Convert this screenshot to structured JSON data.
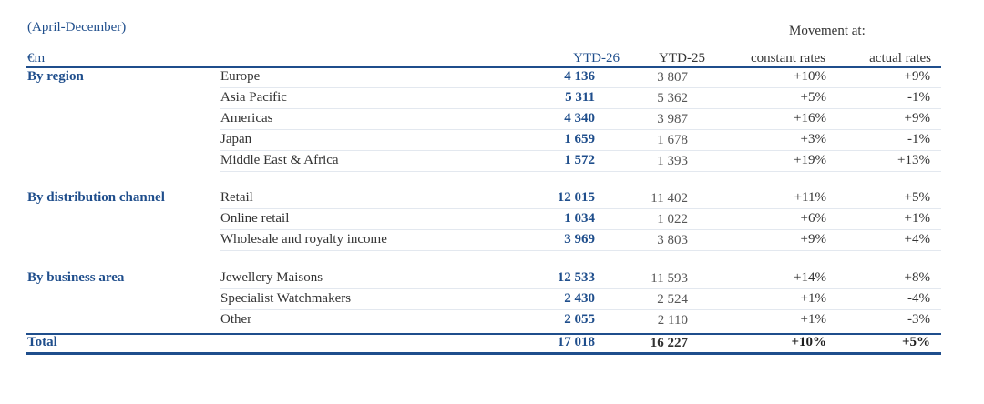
{
  "period": "(April-December)",
  "movement_heading": "Movement at:",
  "headers": {
    "unit": "€m",
    "ytd26": "YTD-26",
    "ytd25": "YTD-25",
    "constant": "constant rates",
    "actual": "actual rates"
  },
  "sections": {
    "region": "By region",
    "channel": "By distribution channel",
    "business": "By business area",
    "total": "Total"
  },
  "rows": [
    {
      "label": "Europe",
      "ytd26": "4 136",
      "ytd25": "3 807",
      "constant": "+10%",
      "actual": "+9%"
    },
    {
      "label": "Asia Pacific",
      "ytd26": "5 311",
      "ytd25": "5 362",
      "constant": "+5%",
      "actual": "-1%"
    },
    {
      "label": "Americas",
      "ytd26": "4 340",
      "ytd25": "3 987",
      "constant": "+16%",
      "actual": "+9%"
    },
    {
      "label": "Japan",
      "ytd26": "1 659",
      "ytd25": "1 678",
      "constant": "+3%",
      "actual": "-1%"
    },
    {
      "label": "Middle East & Africa",
      "ytd26": "1 572",
      "ytd25": "1 393",
      "constant": "+19%",
      "actual": "+13%"
    },
    {
      "label": "Retail",
      "ytd26": "12 015",
      "ytd25": "11 402",
      "constant": "+11%",
      "actual": "+5%"
    },
    {
      "label": "Online retail",
      "ytd26": "1 034",
      "ytd25": "1 022",
      "constant": "+6%",
      "actual": "+1%"
    },
    {
      "label": "Wholesale and royalty income",
      "ytd26": "3 969",
      "ytd25": "3 803",
      "constant": "+9%",
      "actual": "+4%"
    },
    {
      "label": "Jewellery Maisons",
      "ytd26": "12 533",
      "ytd25": "11 593",
      "constant": "+14%",
      "actual": "+8%"
    },
    {
      "label": "Specialist Watchmakers",
      "ytd26": "2 430",
      "ytd25": "2 524",
      "constant": "+1%",
      "actual": "-4%"
    },
    {
      "label": "Other",
      "ytd26": "2 055",
      "ytd25": "2 110",
      "constant": "+1%",
      "actual": "-3%"
    }
  ],
  "total": {
    "ytd26": "17 018",
    "ytd25": "16 227",
    "constant": "+10%",
    "actual": "+5%"
  },
  "colors": {
    "accent": "#1f4e8c",
    "text": "#333333"
  }
}
